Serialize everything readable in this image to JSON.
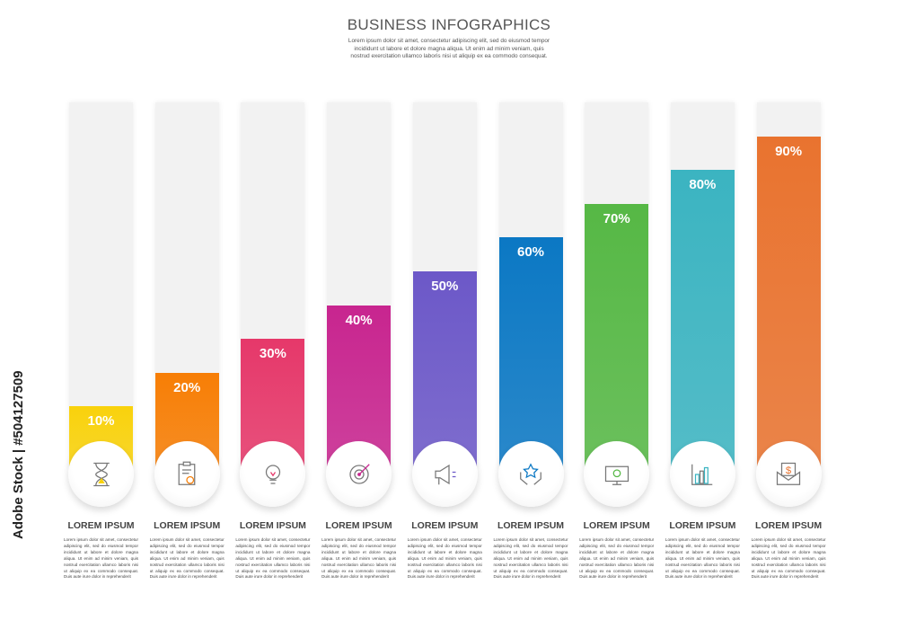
{
  "header": {
    "title": "BUSINESS INFOGRAPHICS",
    "subtitle": "Lorem ipsum dolor sit amet, consectetur adipiscing elit, sed do eiusmod tempor incididunt ut labore et dolore magna aliqua. Ut enim ad minim veniam, quis nostrud exercitation ullamco laboris nisi ut aliquip ex ea commodo consequat."
  },
  "watermark": "Adobe Stock | #504127509",
  "chart_data": {
    "type": "bar",
    "ylim": [
      0,
      100
    ],
    "categories": [
      "LOREM IPSUM",
      "LOREM IPSUM",
      "LOREM IPSUM",
      "LOREM IPSUM",
      "LOREM IPSUM",
      "LOREM IPSUM",
      "LOREM IPSUM",
      "LOREM IPSUM",
      "LOREM IPSUM"
    ],
    "values": [
      10,
      20,
      30,
      40,
      50,
      60,
      70,
      80,
      90
    ],
    "value_labels": [
      "10%",
      "20%",
      "30%",
      "40%",
      "50%",
      "60%",
      "70%",
      "80%",
      "90%"
    ],
    "colors": [
      "#f9d20c",
      "#f77e05",
      "#e6386a",
      "#c8258f",
      "#6c58c8",
      "#0b78c4",
      "#56b845",
      "#3bb4c1",
      "#e9732f"
    ],
    "icons": [
      "hourglass-icon",
      "clipboard-icon",
      "lightbulb-icon",
      "target-icon",
      "megaphone-icon",
      "hands-star-icon",
      "monitor-money-icon",
      "bar-chart-icon",
      "envelope-dollar-icon"
    ],
    "descriptions": [
      "Lorem ipsum dolor sit amet, consectetur adipiscing elit, sed do eiusmod tempor incididunt ut labore et dolore magna aliqua. Ut enim ad minim veniam, quis nostrud exercitation ullamco laboris nisi ut aliquip ex ea commodo consequat. Duis aute irure dolor in reprehenderit"
    ]
  }
}
